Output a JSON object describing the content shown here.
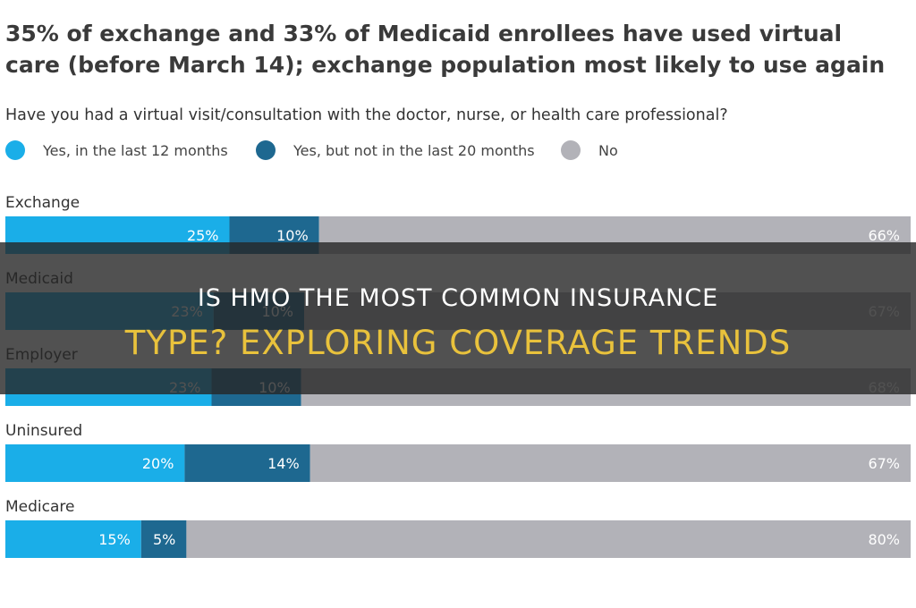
{
  "chart_data": {
    "type": "bar",
    "stacked": true,
    "orientation": "horizontal",
    "title_line1": "35% of exchange and 33% of Medicaid enrollees have used virtual",
    "title_line2": "care (before March 14); exchange population most likely to use again",
    "subtitle": "Have you had a virtual visit/consultation with the doctor, nurse, or health care professional?",
    "categories": [
      "Exchange",
      "Medicaid",
      "Employer",
      "Uninsured",
      "Medicare"
    ],
    "series": [
      {
        "name": "Yes, in the last 12 months",
        "color": "#1aaee8",
        "values": [
          25,
          23,
          23,
          20,
          15
        ],
        "labels": [
          "25%",
          "23%",
          "23%",
          "20%",
          "15%"
        ]
      },
      {
        "name": "Yes, but not in the last 20 months",
        "color": "#1e6890",
        "values": [
          10,
          10,
          10,
          14,
          5
        ],
        "labels": [
          "10%",
          "10%",
          "10%",
          "14%",
          "5%"
        ]
      },
      {
        "name": "No",
        "color": "#b2b2b8",
        "values": [
          66,
          67,
          68,
          67,
          80
        ],
        "labels": [
          "66%",
          "67%",
          "68%",
          "67%",
          "80%"
        ]
      }
    ],
    "legend_position": "top",
    "grid": false
  },
  "overlay": {
    "line1": "IS HMO THE MOST COMMON INSURANCE",
    "line2": "TYPE? EXPLORING COVERAGE TRENDS"
  }
}
